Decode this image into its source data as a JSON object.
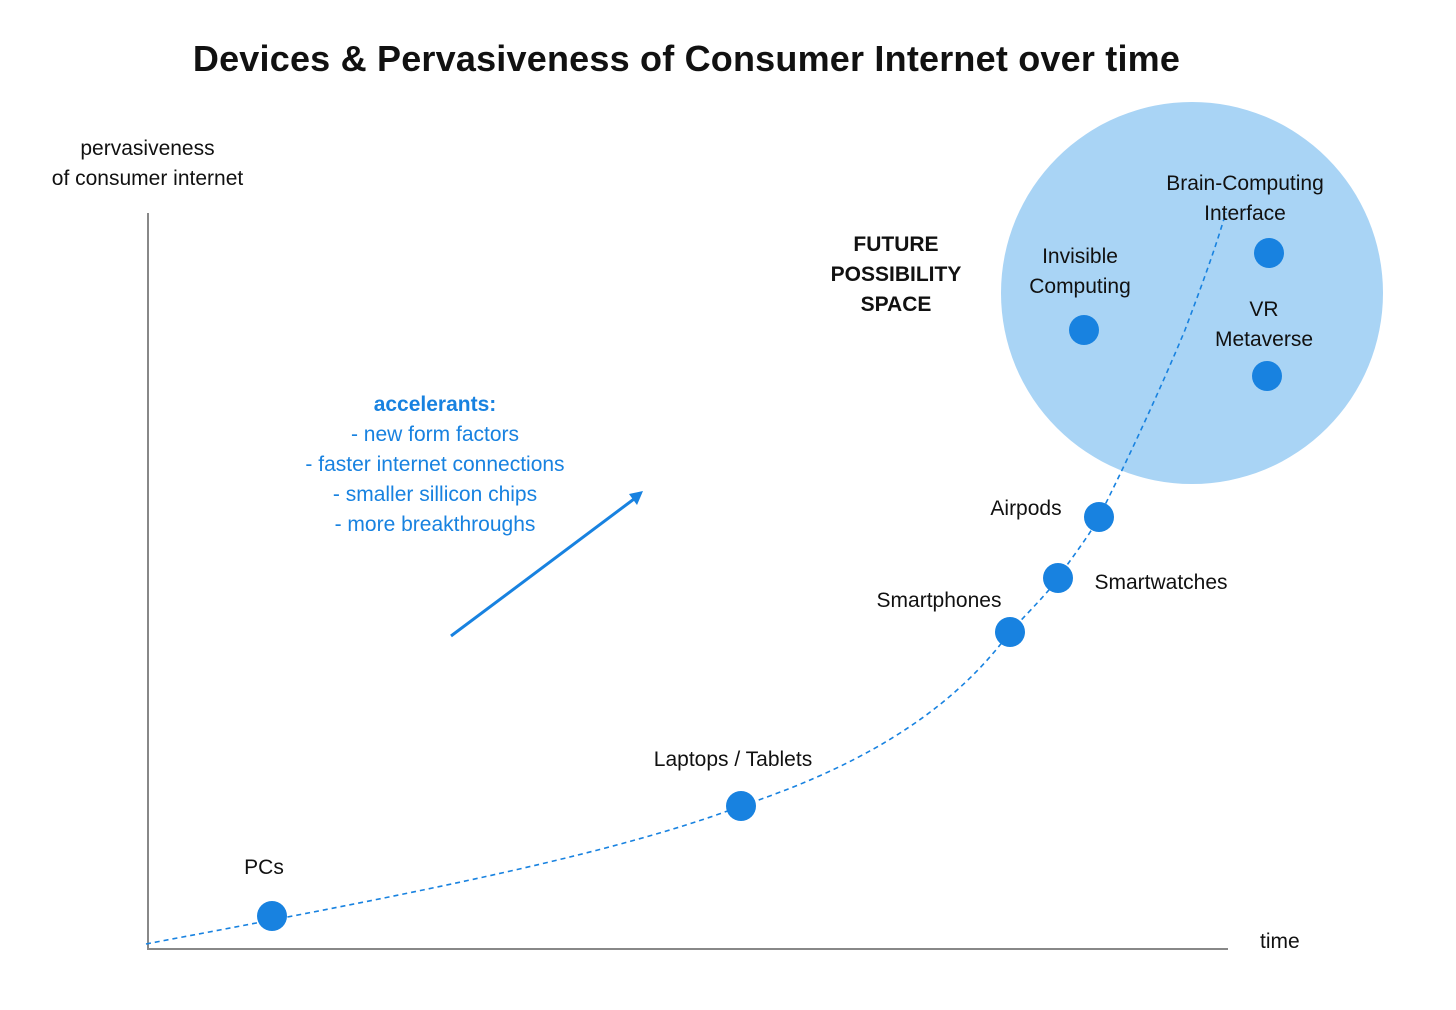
{
  "title": "Devices & Pervasiveness of Consumer Internet over time",
  "axes": {
    "y_label_line1": "pervasiveness",
    "y_label_line2": "of consumer internet",
    "x_label": "time"
  },
  "future_space": {
    "line1": "FUTURE",
    "line2": "POSSIBILITY",
    "line3": "SPACE"
  },
  "accelerants": {
    "heading": "accelerants:",
    "items": [
      "- new form factors",
      "- faster internet connections",
      "- smaller sillicon chips",
      "- more breakthroughs"
    ]
  },
  "devices": {
    "pcs": "PCs",
    "laptops": "Laptops / Tablets",
    "smartphones": "Smartphones",
    "smartwatches": "Smartwatches",
    "airpods": "Airpods",
    "invisible_line1": "Invisible",
    "invisible_line2": "Computing",
    "bci_line1": "Brain-Computing",
    "bci_line2": "Interface",
    "vr_line1": "VR",
    "vr_line2": "Metaverse"
  },
  "colors": {
    "accent": "#1882e0",
    "bubble": "#a9d4f5",
    "axis": "#888888"
  }
}
